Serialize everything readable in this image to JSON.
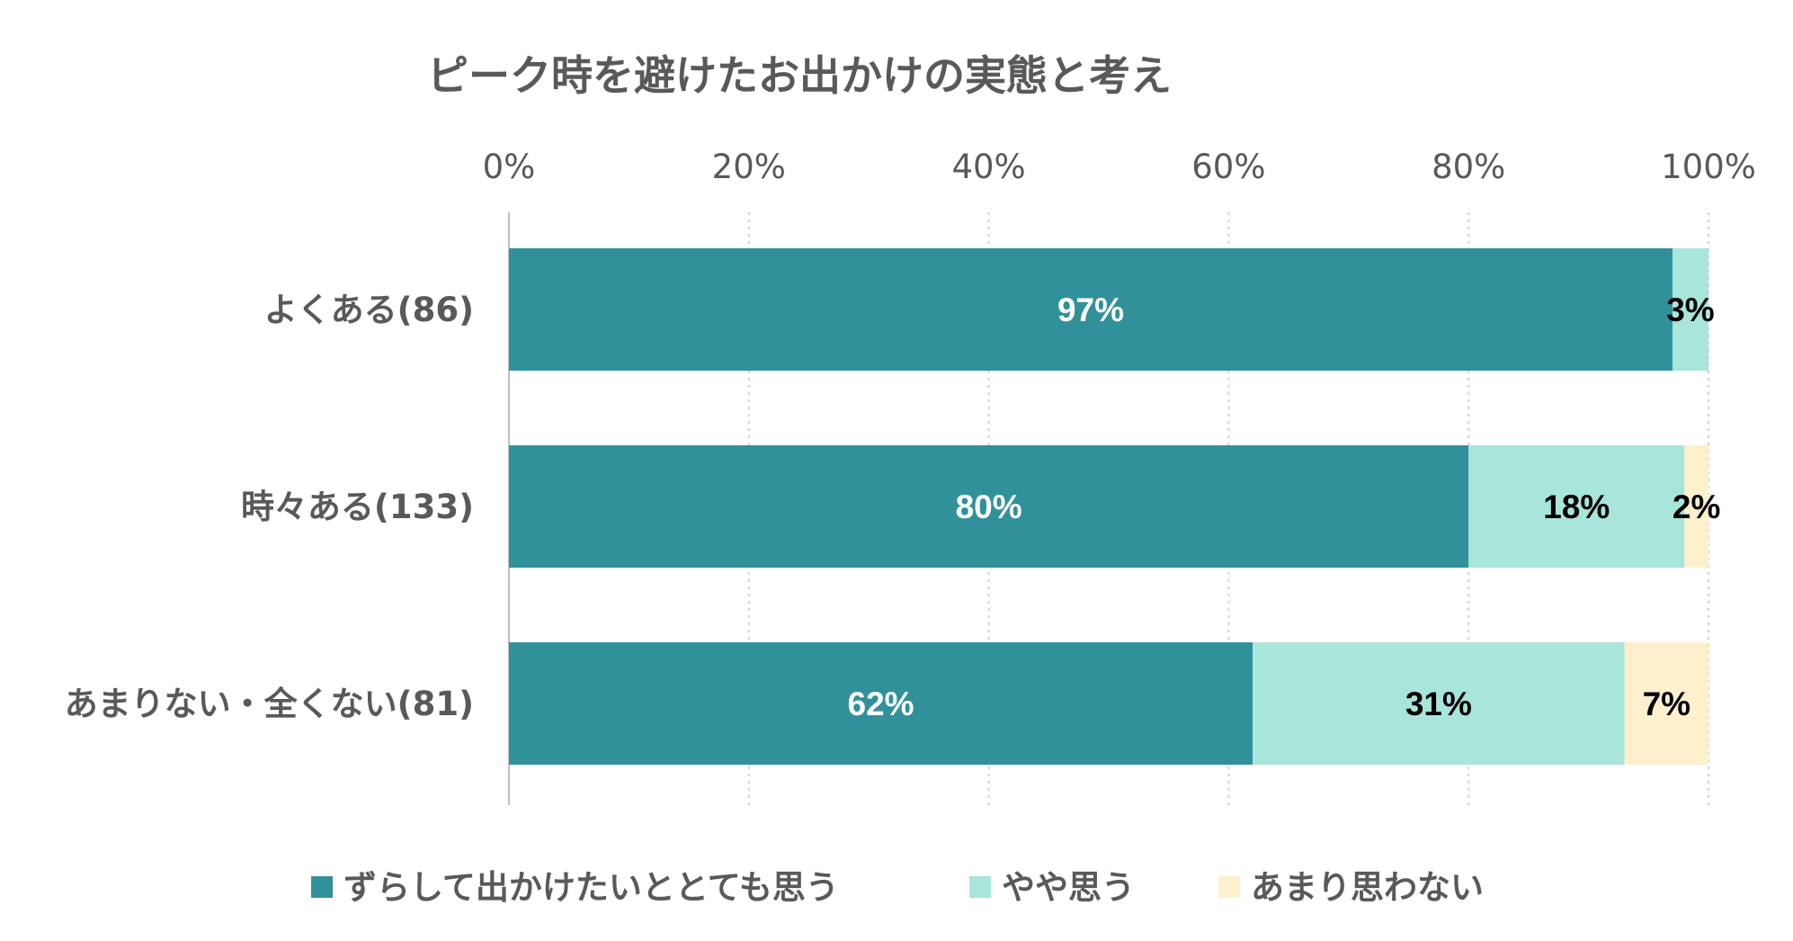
{
  "chart_data": {
    "type": "bar",
    "orientation": "horizontal",
    "stacked": true,
    "percent": true,
    "title": "ピーク時を避けたお出かけの実態と考え",
    "categories": [
      "よくある(86)",
      "時々ある(133)",
      "あまりない・全くない(81)"
    ],
    "series": [
      {
        "name": "ずらして出かけたいととても思う",
        "values": [
          97,
          80,
          62
        ],
        "labels": [
          "97%",
          "80%",
          "62%"
        ],
        "color": "#31919A",
        "label_color": "#FFFFFF"
      },
      {
        "name": "やや思う",
        "values": [
          3,
          18,
          31
        ],
        "labels": [
          "3%",
          "18%",
          "31%"
        ],
        "color": "#A8E5DA",
        "label_color": "#000000"
      },
      {
        "name": "あまり思わない",
        "values": [
          0,
          2,
          7
        ],
        "labels": [
          "",
          "2%",
          "7%"
        ],
        "color": "#FEF0CC",
        "label_color": "#000000"
      }
    ],
    "xlim": [
      0,
      100
    ],
    "xticks": [
      "0%",
      "20%",
      "40%",
      "60%",
      "80%",
      "100%"
    ],
    "axis_position": "top",
    "grid": true,
    "legend_position": "bottom"
  }
}
